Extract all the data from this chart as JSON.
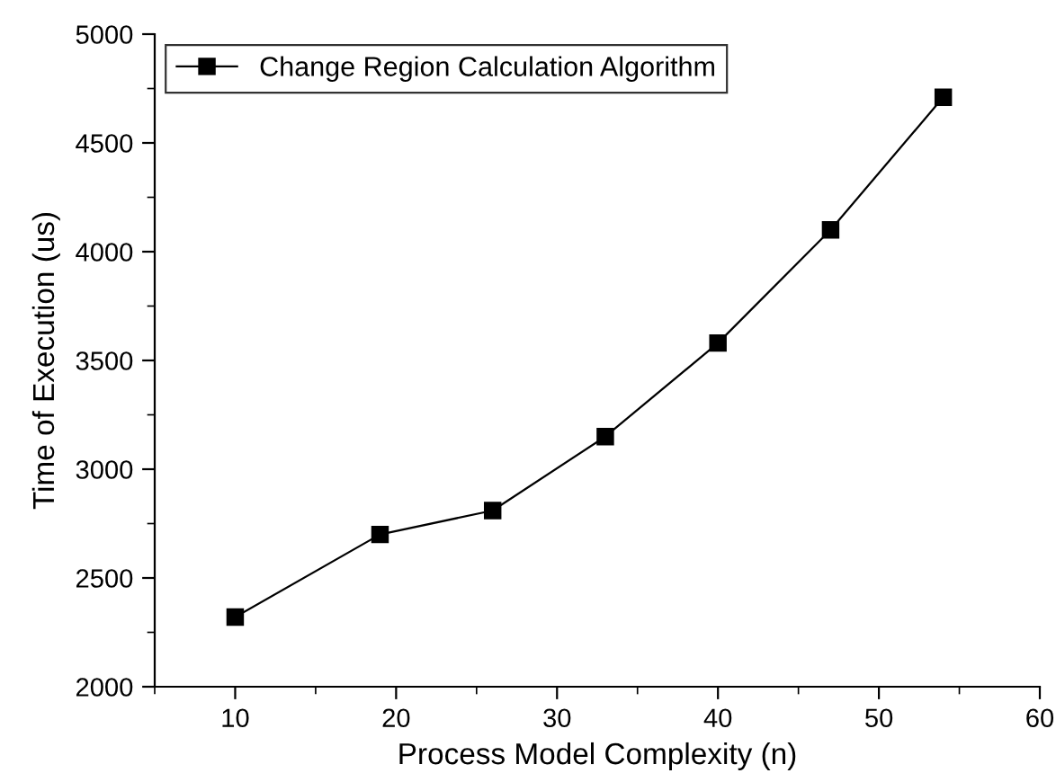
{
  "chart_data": {
    "type": "line",
    "xlabel": "Process Model Complexity (n)",
    "ylabel": "Time of Execution (us)",
    "x": [
      10,
      19,
      26,
      33,
      40,
      47,
      54
    ],
    "series": [
      {
        "name": "Change Region Calculation Algorithm",
        "color": "#000000",
        "values": [
          2320,
          2700,
          2810,
          3150,
          3580,
          4100,
          4710
        ]
      }
    ],
    "xlim": [
      5,
      60
    ],
    "xticks": [
      10,
      20,
      30,
      40,
      50,
      60
    ],
    "ylim": [
      2000,
      5000
    ],
    "yticks": [
      2000,
      2500,
      3000,
      3500,
      4000,
      4500,
      5000
    ],
    "marker": "square",
    "line_style": "solid",
    "legend": "top left",
    "grid": false
  }
}
